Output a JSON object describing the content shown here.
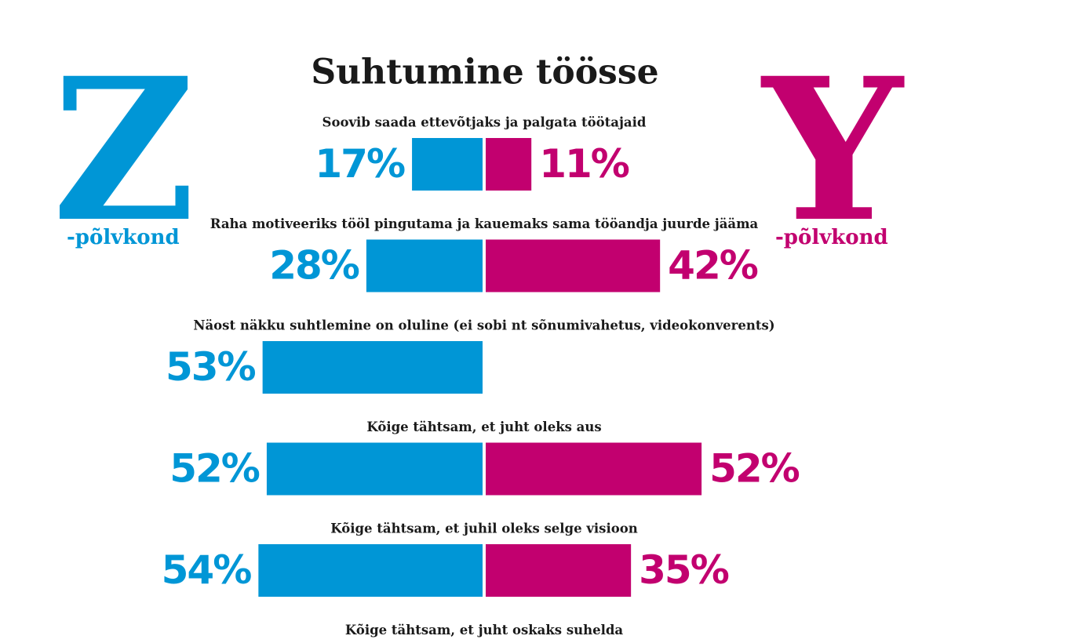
{
  "chart_data": {
    "type": "butterfly",
    "title": "Suhtumine töösse",
    "categories": [
      "Soovib saada ettevõtjaks ja palgata töötajaid",
      "Raha motiveeriks tööl pingutama ja kauemaks sama tööandja juurde jääma",
      "Näost näkku suhtlemine on oluline (ei sobi nt sõnumivahetus, videokonverents)",
      "Kõige tähtsam, et juht oleks aus",
      "Kõige tähtsam, et juhil oleks selge visioon",
      "Kõige tähtsam, et juht oskaks suhelda"
    ],
    "series": [
      {
        "name": "Z",
        "legend_suffix": "-põlvkond",
        "color": "#0096d6",
        "values": [
          17,
          28,
          53,
          52,
          54,
          null
        ],
        "value_labels": [
          "17%",
          "28%",
          "53%",
          "52%",
          "54%",
          null
        ]
      },
      {
        "name": "Y",
        "legend_suffix": "-põlvkond",
        "color": "#c2006f",
        "values": [
          11,
          42,
          null,
          52,
          35,
          null
        ],
        "value_labels": [
          "11%",
          "42%",
          null,
          "52%",
          "35%",
          null
        ]
      }
    ]
  }
}
